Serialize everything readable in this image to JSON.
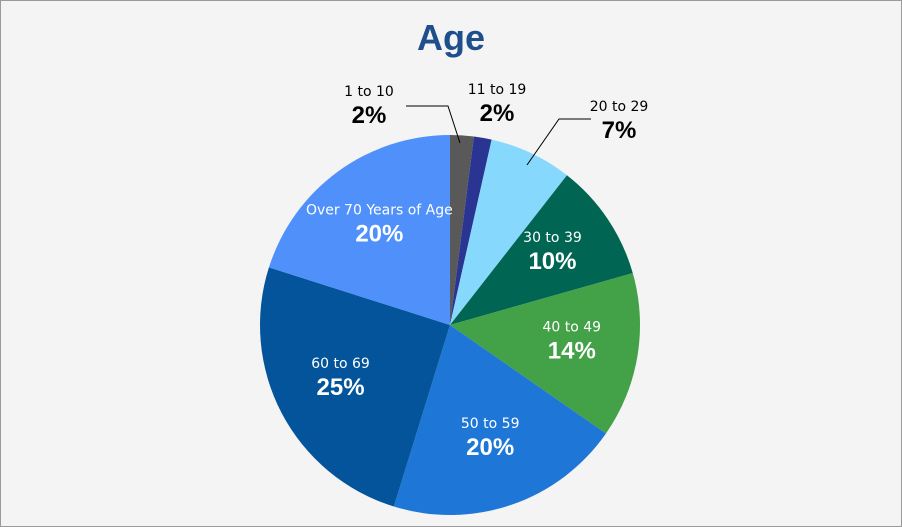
{
  "chart_data": {
    "type": "pie",
    "title": "Age",
    "slices": [
      {
        "label": "1 to 10",
        "value": 2,
        "display": "2%",
        "color": "#595959"
      },
      {
        "label": "11 to 19",
        "value": 1.5,
        "display": "2%",
        "color": "#2a3593"
      },
      {
        "label": "20 to 29",
        "value": 7,
        "display": "7%",
        "color": "#87d8fd"
      },
      {
        "label": "30 to 39",
        "value": 10,
        "display": "10%",
        "color": "#006653"
      },
      {
        "label": "40 to 49",
        "value": 14,
        "display": "14%",
        "color": "#43a147"
      },
      {
        "label": "50 to 59",
        "value": 20,
        "display": "20%",
        "color": "#1e77d6"
      },
      {
        "label": "60 to 69",
        "value": 25,
        "display": "25%",
        "color": "#03549b"
      },
      {
        "label": "Over 70 Years of Age",
        "value": 20,
        "display": "20%",
        "color": "#4f90fb"
      }
    ]
  }
}
